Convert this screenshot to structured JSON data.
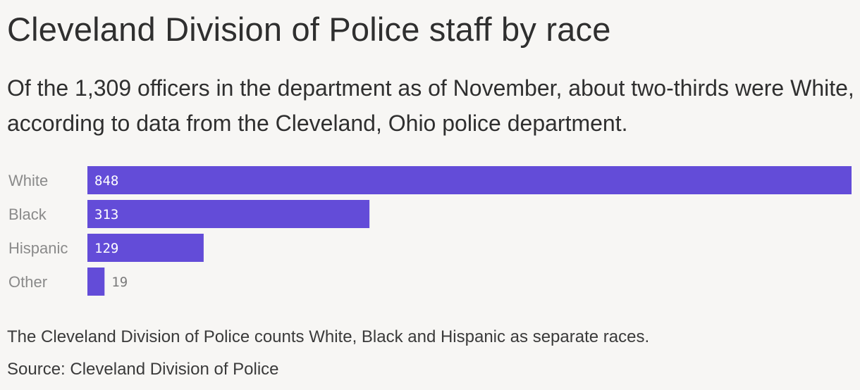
{
  "header": {
    "title": "Cleveland Division of Police staff by race",
    "subtitle": "Of the 1,309 officers in the department as of November, about two-thirds were White, according to data from the Cleveland, Ohio police department."
  },
  "footer": {
    "note": "The Cleveland Division of Police counts White, Black and Hispanic as separate races.",
    "source": "Source: Cleveland Division of Police"
  },
  "colors": {
    "bar": "#634cd8",
    "background": "#f7f6f4"
  },
  "chart_data": {
    "type": "bar",
    "orientation": "horizontal",
    "categories": [
      "White",
      "Black",
      "Hispanic",
      "Other"
    ],
    "values": [
      848,
      313,
      129,
      19
    ],
    "value_labels": [
      "848",
      "313",
      "129",
      "19"
    ],
    "xlim": [
      0,
      848
    ],
    "grid": false,
    "legend": "none"
  }
}
